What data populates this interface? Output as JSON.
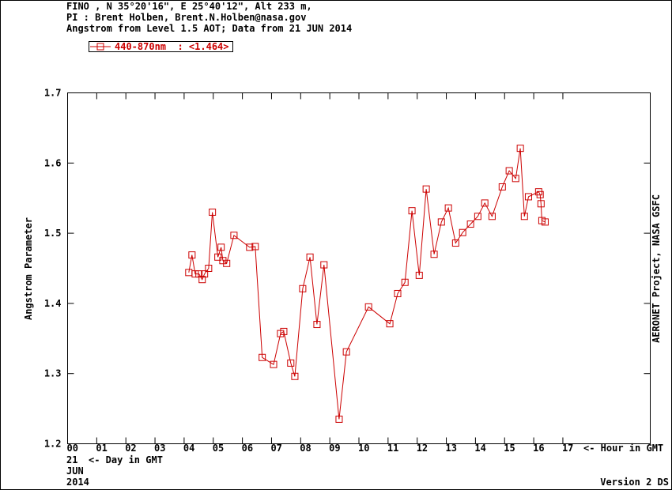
{
  "chart_data": {
    "type": "line",
    "title_lines": [
      "FINO , N 35°20'16\", E 25°40'12\", Alt 233 m,",
      "PI : Brent Holben, Brent.N.Holben@nasa.gov",
      "Angstrom from Level 1.5 AOT; Data from 21 JUN 2014"
    ],
    "y_label": "Angstrom Parameter",
    "x_label": "<- Hour in GMT",
    "day": "21",
    "day_label": "<- Day in GMT",
    "month": "JUN",
    "year": "2014",
    "side_note": "AERONET Project, NASA GSFC",
    "version": "Version 2 DS",
    "xlim": [
      0,
      20
    ],
    "ylim": [
      1.2,
      1.7
    ],
    "xticks": [
      {
        "value": 0,
        "label": "00"
      },
      {
        "value": 1,
        "label": "01"
      },
      {
        "value": 2,
        "label": "02"
      },
      {
        "value": 3,
        "label": "03"
      },
      {
        "value": 4,
        "label": "04"
      },
      {
        "value": 5,
        "label": "05"
      },
      {
        "value": 6,
        "label": "06"
      },
      {
        "value": 7,
        "label": "07"
      },
      {
        "value": 8,
        "label": "08"
      },
      {
        "value": 9,
        "label": "09"
      },
      {
        "value": 10,
        "label": "10"
      },
      {
        "value": 11,
        "label": "11"
      },
      {
        "value": 12,
        "label": "12"
      },
      {
        "value": 13,
        "label": "13"
      },
      {
        "value": 14,
        "label": "14"
      },
      {
        "value": 15,
        "label": "15"
      },
      {
        "value": 16,
        "label": "16"
      },
      {
        "value": 17,
        "label": "17"
      }
    ],
    "yticks": [
      1.2,
      1.3,
      1.4,
      1.5,
      1.6,
      1.7
    ],
    "x": [
      4.16,
      4.27,
      4.38,
      4.51,
      4.62,
      4.7,
      4.84,
      4.97,
      5.16,
      5.27,
      5.33,
      5.46,
      5.71,
      6.25,
      6.44,
      6.68,
      7.07,
      7.31,
      7.42,
      7.66,
      7.8,
      8.07,
      8.32,
      8.56,
      8.8,
      9.32,
      9.57,
      10.33,
      11.06,
      11.33,
      11.58,
      11.82,
      12.07,
      12.31,
      12.58,
      12.83,
      13.07,
      13.32,
      13.56,
      13.83,
      14.08,
      14.32,
      14.57,
      14.92,
      15.16,
      15.38,
      15.54,
      15.68,
      15.82,
      16.17,
      16.22,
      16.25,
      16.28,
      16.39
    ],
    "series": [
      {
        "name": "440-870nm  : <1.464>",
        "color": "#cc0000",
        "values": [
          1.444,
          1.469,
          1.442,
          1.442,
          1.434,
          1.442,
          1.45,
          1.53,
          1.466,
          1.48,
          1.461,
          1.457,
          1.497,
          1.48,
          1.481,
          1.323,
          1.313,
          1.357,
          1.36,
          1.315,
          1.296,
          1.421,
          1.466,
          1.37,
          1.455,
          1.235,
          1.331,
          1.395,
          1.371,
          1.414,
          1.43,
          1.532,
          1.44,
          1.563,
          1.47,
          1.516,
          1.536,
          1.486,
          1.501,
          1.513,
          1.524,
          1.543,
          1.524,
          1.566,
          1.589,
          1.578,
          1.621,
          1.524,
          1.552,
          1.559,
          1.555,
          1.542,
          1.518,
          1.516
        ]
      }
    ]
  }
}
